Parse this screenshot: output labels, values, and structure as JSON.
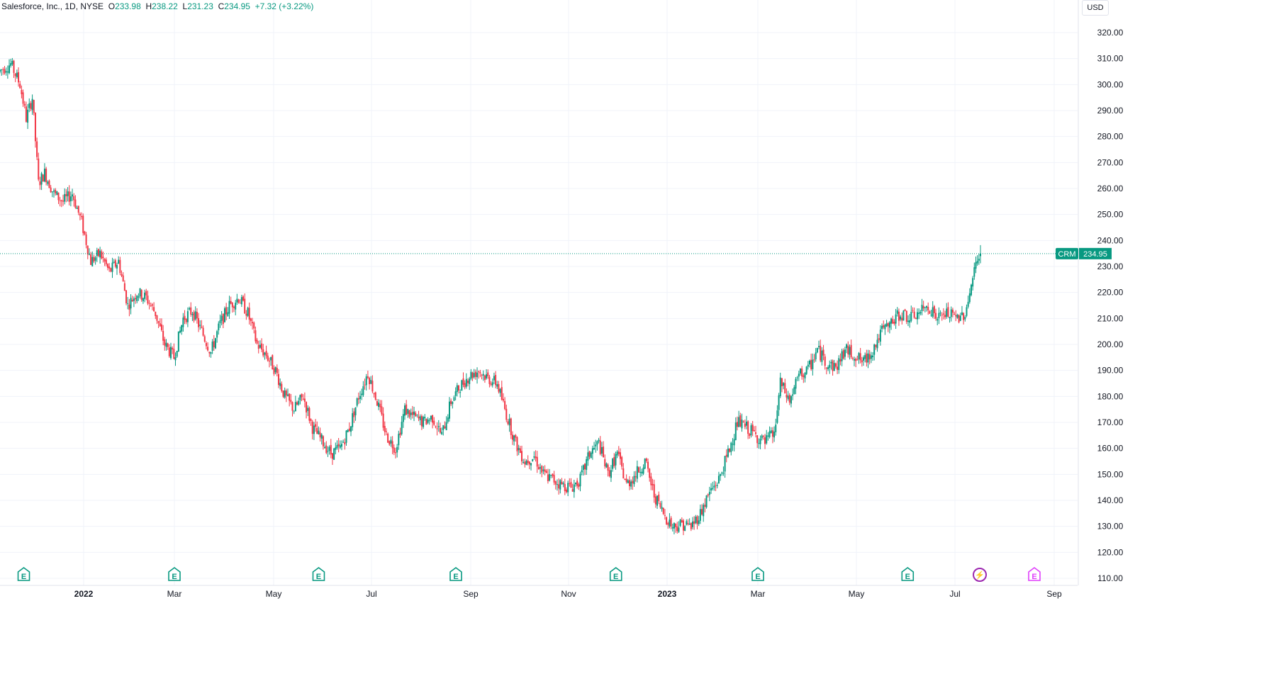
{
  "legend": {
    "name": "Salesforce, Inc., 1D, NYSE",
    "o_label": "O",
    "o_value": "233.98",
    "h_label": "H",
    "h_value": "238.22",
    "l_label": "L",
    "l_value": "231.23",
    "c_label": "C",
    "c_value": "234.95",
    "change": "+7.32 (+3.22%)"
  },
  "currency": "USD",
  "colors": {
    "up": "#089981",
    "down": "#f23645",
    "grid": "#f0f3fa",
    "text": "#131722",
    "price_line": "#089981",
    "event_green": "#089981",
    "event_purple": "#e040fb",
    "event_violet": "#9c27b0"
  },
  "price_tag": {
    "symbol": "CRM",
    "price": "234.95"
  },
  "chart_data": {
    "type": "candlestick",
    "title": "Salesforce, Inc., 1D, NYSE",
    "ylim": [
      110,
      322
    ],
    "y_ticks": [
      "320.00",
      "310.00",
      "300.00",
      "290.00",
      "280.00",
      "270.00",
      "260.00",
      "250.00",
      "240.00",
      "230.00",
      "220.00",
      "210.00",
      "200.00",
      "190.00",
      "180.00",
      "170.00",
      "160.00",
      "150.00",
      "140.00",
      "130.00",
      "120.00",
      "110.00"
    ],
    "x_ticks": [
      {
        "label": "2022",
        "bold": true,
        "t": 0
      },
      {
        "label": "Mar",
        "bold": false,
        "t": 1
      },
      {
        "label": "May",
        "bold": false,
        "t": 2
      },
      {
        "label": "Jul",
        "bold": false,
        "t": 3
      },
      {
        "label": "Sep",
        "bold": false,
        "t": 4
      },
      {
        "label": "Nov",
        "bold": false,
        "t": 5
      },
      {
        "label": "2023",
        "bold": true,
        "t": 6
      },
      {
        "label": "Mar",
        "bold": false,
        "t": 7
      },
      {
        "label": "May",
        "bold": false,
        "t": 8
      },
      {
        "label": "Jul",
        "bold": false,
        "t": 9
      },
      {
        "label": "Sep",
        "bold": false,
        "t": 10
      }
    ],
    "anchors": [
      [
        0,
        305
      ],
      [
        8,
        308
      ],
      [
        14,
        300
      ],
      [
        18,
        287
      ],
      [
        22,
        295
      ],
      [
        26,
        262
      ],
      [
        30,
        266
      ],
      [
        36,
        258
      ],
      [
        42,
        255
      ],
      [
        48,
        258
      ],
      [
        54,
        247
      ],
      [
        60,
        232
      ],
      [
        66,
        235
      ],
      [
        72,
        228
      ],
      [
        78,
        232
      ],
      [
        84,
        215
      ],
      [
        90,
        220
      ],
      [
        96,
        218
      ],
      [
        102,
        212
      ],
      [
        108,
        200
      ],
      [
        114,
        195
      ],
      [
        120,
        210
      ],
      [
        126,
        213
      ],
      [
        132,
        205
      ],
      [
        138,
        197
      ],
      [
        144,
        208
      ],
      [
        150,
        215
      ],
      [
        156,
        218
      ],
      [
        162,
        212
      ],
      [
        168,
        200
      ],
      [
        174,
        196
      ],
      [
        180,
        190
      ],
      [
        186,
        180
      ],
      [
        192,
        175
      ],
      [
        198,
        180
      ],
      [
        204,
        168
      ],
      [
        210,
        163
      ],
      [
        216,
        158
      ],
      [
        222,
        160
      ],
      [
        228,
        168
      ],
      [
        234,
        180
      ],
      [
        240,
        189
      ],
      [
        246,
        178
      ],
      [
        252,
        165
      ],
      [
        258,
        160
      ],
      [
        264,
        175
      ],
      [
        270,
        172
      ],
      [
        276,
        170
      ],
      [
        282,
        172
      ],
      [
        288,
        165
      ],
      [
        294,
        178
      ],
      [
        300,
        184
      ],
      [
        306,
        188
      ],
      [
        312,
        190
      ],
      [
        318,
        187
      ],
      [
        324,
        185
      ],
      [
        330,
        173
      ],
      [
        336,
        162
      ],
      [
        342,
        155
      ],
      [
        348,
        157
      ],
      [
        354,
        150
      ],
      [
        360,
        148
      ],
      [
        366,
        146
      ],
      [
        372,
        145
      ],
      [
        378,
        148
      ],
      [
        384,
        158
      ],
      [
        390,
        162
      ],
      [
        396,
        150
      ],
      [
        402,
        158
      ],
      [
        408,
        146
      ],
      [
        414,
        150
      ],
      [
        420,
        155
      ],
      [
        426,
        142
      ],
      [
        432,
        135
      ],
      [
        438,
        130
      ],
      [
        444,
        131
      ],
      [
        450,
        130
      ],
      [
        456,
        135
      ],
      [
        462,
        143
      ],
      [
        468,
        148
      ],
      [
        474,
        158
      ],
      [
        480,
        170
      ],
      [
        486,
        168
      ],
      [
        492,
        165
      ],
      [
        498,
        162
      ],
      [
        502,
        165
      ],
      [
        504,
        165
      ],
      [
        508,
        185
      ],
      [
        514,
        178
      ],
      [
        520,
        188
      ],
      [
        526,
        190
      ],
      [
        532,
        198
      ],
      [
        538,
        193
      ],
      [
        544,
        191
      ],
      [
        550,
        198
      ],
      [
        556,
        196
      ],
      [
        562,
        193
      ],
      [
        568,
        198
      ],
      [
        574,
        205
      ],
      [
        580,
        208
      ],
      [
        586,
        212
      ],
      [
        592,
        210
      ],
      [
        598,
        212
      ],
      [
        604,
        215
      ],
      [
        610,
        210
      ],
      [
        616,
        212
      ],
      [
        622,
        210
      ],
      [
        628,
        212
      ],
      [
        634,
        228
      ],
      [
        637,
        235
      ]
    ],
    "last_candle": {
      "open": 233.98,
      "high": 238.22,
      "low": 231.23,
      "close": 234.95,
      "change": 7.32,
      "change_pct": 3.22
    },
    "events": [
      {
        "type": "earnings",
        "label": "E",
        "t": -0.66,
        "style": "green"
      },
      {
        "type": "earnings",
        "label": "E",
        "t": 1.0,
        "style": "green"
      },
      {
        "type": "earnings",
        "label": "E",
        "t": 2.46,
        "style": "green"
      },
      {
        "type": "earnings",
        "label": "E",
        "t": 3.85,
        "style": "green"
      },
      {
        "type": "earnings",
        "label": "E",
        "t": 5.48,
        "style": "green"
      },
      {
        "type": "earnings",
        "label": "E",
        "t": 7.0,
        "style": "green"
      },
      {
        "type": "earnings",
        "label": "E",
        "t": 8.52,
        "style": "green"
      },
      {
        "type": "dividend",
        "label": "⚡",
        "t": 9.25,
        "style": "violet"
      },
      {
        "type": "earnings",
        "label": "E",
        "t": 9.8,
        "style": "purple_outline"
      }
    ]
  }
}
